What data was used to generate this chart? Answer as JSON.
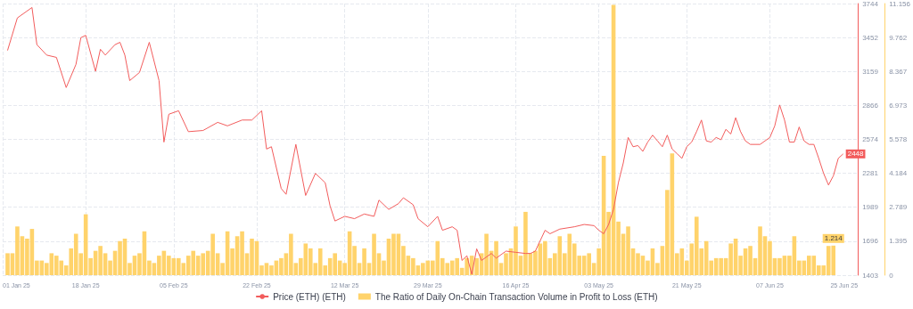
{
  "chart_data": {
    "type": "bar",
    "x": [
      "2025-01-02",
      "2025-01-03",
      "2025-01-04",
      "2025-01-05",
      "2025-01-06",
      "2025-01-07",
      "2025-01-08",
      "2025-01-09",
      "2025-01-10",
      "2025-01-11",
      "2025-01-12",
      "2025-01-13",
      "2025-01-14",
      "2025-01-15",
      "2025-01-16",
      "2025-01-17",
      "2025-01-18",
      "2025-01-19",
      "2025-01-20",
      "2025-01-21",
      "2025-01-22",
      "2025-01-23",
      "2025-01-24",
      "2025-01-25",
      "2025-01-26",
      "2025-01-27",
      "2025-01-28",
      "2025-01-29",
      "2025-01-30",
      "2025-01-31",
      "2025-02-01",
      "2025-02-02",
      "2025-02-03",
      "2025-02-04",
      "2025-02-05",
      "2025-02-06",
      "2025-02-07",
      "2025-02-08",
      "2025-02-09",
      "2025-02-10",
      "2025-02-11",
      "2025-02-12",
      "2025-02-13",
      "2025-02-14",
      "2025-02-15",
      "2025-02-16",
      "2025-02-17",
      "2025-02-18",
      "2025-02-19",
      "2025-02-20",
      "2025-02-21",
      "2025-02-22",
      "2025-02-23",
      "2025-02-24",
      "2025-02-25",
      "2025-02-26",
      "2025-02-27",
      "2025-02-28",
      "2025-03-01",
      "2025-03-02",
      "2025-03-03",
      "2025-03-04",
      "2025-03-05",
      "2025-03-06",
      "2025-03-07",
      "2025-03-08",
      "2025-03-09",
      "2025-03-10",
      "2025-03-11",
      "2025-03-12",
      "2025-03-13",
      "2025-03-14",
      "2025-03-15",
      "2025-03-16",
      "2025-03-17",
      "2025-03-18",
      "2025-03-19",
      "2025-03-20",
      "2025-03-21",
      "2025-03-22",
      "2025-03-23",
      "2025-03-24",
      "2025-03-25",
      "2025-03-26",
      "2025-03-27",
      "2025-03-28",
      "2025-03-29",
      "2025-03-30",
      "2025-03-31",
      "2025-04-01",
      "2025-04-02",
      "2025-04-03",
      "2025-04-04",
      "2025-04-05",
      "2025-04-06",
      "2025-04-07",
      "2025-04-08",
      "2025-04-09",
      "2025-04-10",
      "2025-04-11",
      "2025-04-12",
      "2025-04-13",
      "2025-04-14",
      "2025-04-15",
      "2025-04-16",
      "2025-04-17",
      "2025-04-18",
      "2025-04-19",
      "2025-04-20",
      "2025-04-21",
      "2025-04-22",
      "2025-04-23",
      "2025-04-24",
      "2025-04-25",
      "2025-04-26",
      "2025-04-27",
      "2025-04-28",
      "2025-04-29",
      "2025-04-30",
      "2025-05-01",
      "2025-05-02",
      "2025-05-03",
      "2025-05-04",
      "2025-05-05",
      "2025-05-06",
      "2025-05-07",
      "2025-05-08",
      "2025-05-09",
      "2025-05-10",
      "2025-05-11",
      "2025-05-12",
      "2025-05-13",
      "2025-05-14",
      "2025-05-15",
      "2025-05-16",
      "2025-05-17",
      "2025-05-18",
      "2025-05-19",
      "2025-05-20",
      "2025-05-21",
      "2025-05-22",
      "2025-05-23",
      "2025-05-24",
      "2025-05-25",
      "2025-05-26",
      "2025-05-27",
      "2025-05-28",
      "2025-05-29",
      "2025-05-30",
      "2025-05-31",
      "2025-06-01",
      "2025-06-02",
      "2025-06-03",
      "2025-06-04",
      "2025-06-05",
      "2025-06-06",
      "2025-06-07",
      "2025-06-08",
      "2025-06-09",
      "2025-06-10",
      "2025-06-11",
      "2025-06-12",
      "2025-06-13",
      "2025-06-14",
      "2025-06-15",
      "2025-06-16",
      "2025-06-17",
      "2025-06-18",
      "2025-06-19",
      "2025-06-20"
    ],
    "series": [
      {
        "name": "Price (ETH) (ETH)",
        "type": "line",
        "color": "#f25c5c",
        "x": [
          "2025-01-02",
          "2025-01-04",
          "2025-01-07",
          "2025-01-08",
          "2025-01-10",
          "2025-01-12",
          "2025-01-14",
          "2025-01-16",
          "2025-01-17",
          "2025-01-18",
          "2025-01-20",
          "2025-01-21",
          "2025-01-22",
          "2025-01-24",
          "2025-01-25",
          "2025-01-26",
          "2025-01-27",
          "2025-01-29",
          "2025-01-31",
          "2025-02-02",
          "2025-02-03",
          "2025-02-04",
          "2025-02-06",
          "2025-02-08",
          "2025-02-11",
          "2025-02-14",
          "2025-02-16",
          "2025-02-19",
          "2025-02-21",
          "2025-02-23",
          "2025-02-24",
          "2025-02-25",
          "2025-02-27",
          "2025-02-28",
          "2025-03-02",
          "2025-03-04",
          "2025-03-06",
          "2025-03-08",
          "2025-03-09",
          "2025-03-10",
          "2025-03-12",
          "2025-03-14",
          "2025-03-16",
          "2025-03-18",
          "2025-03-19",
          "2025-03-21",
          "2025-03-23",
          "2025-03-24",
          "2025-03-26",
          "2025-03-27",
          "2025-03-29",
          "2025-03-31",
          "2025-04-01",
          "2025-04-03",
          "2025-04-04",
          "2025-04-05",
          "2025-04-06",
          "2025-04-07",
          "2025-04-08",
          "2025-04-09",
          "2025-04-11",
          "2025-04-12",
          "2025-04-14",
          "2025-04-16",
          "2025-04-18",
          "2025-04-19",
          "2025-04-20",
          "2025-04-22",
          "2025-04-23",
          "2025-04-25",
          "2025-04-28",
          "2025-04-30",
          "2025-05-02",
          "2025-05-03",
          "2025-05-04",
          "2025-05-05",
          "2025-05-06",
          "2025-05-07",
          "2025-05-08",
          "2025-05-09",
          "2025-05-10",
          "2025-05-11",
          "2025-05-12",
          "2025-05-13",
          "2025-05-14",
          "2025-05-15",
          "2025-05-16",
          "2025-05-17",
          "2025-05-18",
          "2025-05-19",
          "2025-05-20",
          "2025-05-21",
          "2025-05-22",
          "2025-05-23",
          "2025-05-24",
          "2025-05-25",
          "2025-05-26",
          "2025-05-27",
          "2025-05-28",
          "2025-05-29",
          "2025-05-30",
          "2025-05-31",
          "2025-06-01",
          "2025-06-02",
          "2025-06-03",
          "2025-06-04",
          "2025-06-05",
          "2025-06-07",
          "2025-06-08",
          "2025-06-09",
          "2025-06-10",
          "2025-06-11",
          "2025-06-12",
          "2025-06-13",
          "2025-06-14",
          "2025-06-15",
          "2025-06-16",
          "2025-06-17",
          "2025-06-18",
          "2025-06-19",
          "2025-06-20",
          "2025-06-21",
          "2025-06-22"
        ],
        "values": [
          3340,
          3620,
          3710,
          3390,
          3300,
          3280,
          3020,
          3220,
          3450,
          3470,
          3160,
          3350,
          3300,
          3390,
          3410,
          3300,
          3080,
          3150,
          3410,
          3080,
          2550,
          2790,
          2820,
          2640,
          2650,
          2720,
          2690,
          2740,
          2740,
          2820,
          2490,
          2510,
          2150,
          2100,
          2530,
          2090,
          2280,
          2200,
          2000,
          1870,
          1910,
          1890,
          1930,
          1910,
          2050,
          1970,
          2020,
          2070,
          2010,
          1890,
          1820,
          1910,
          1790,
          1820,
          1790,
          1530,
          1570,
          1410,
          1630,
          1530,
          1590,
          1550,
          1610,
          1600,
          1590,
          1590,
          1610,
          1790,
          1760,
          1800,
          1820,
          1840,
          1830,
          1790,
          1760,
          1840,
          1970,
          2200,
          2370,
          2590,
          2510,
          2520,
          2470,
          2550,
          2610,
          2560,
          2510,
          2610,
          2490,
          2450,
          2410,
          2510,
          2550,
          2640,
          2740,
          2560,
          2550,
          2590,
          2570,
          2660,
          2620,
          2760,
          2640,
          2560,
          2530,
          2530,
          2530,
          2590,
          2690,
          2870,
          2740,
          2550,
          2550,
          2680,
          2560,
          2530,
          2530,
          2410,
          2280,
          2180,
          2260,
          2410,
          2448
        ],
        "value_labels": [
          null,
          null,
          null,
          null,
          null,
          null,
          null,
          null,
          null,
          null,
          null,
          null,
          null,
          null,
          null,
          null,
          null,
          null,
          null,
          null,
          null,
          null,
          null,
          null,
          null,
          null,
          null,
          null,
          null,
          null,
          null,
          null,
          null,
          null,
          null,
          null,
          null,
          null,
          null,
          null,
          null,
          null,
          null,
          null,
          null,
          null,
          null,
          null,
          null,
          null,
          null,
          null,
          null,
          null,
          null,
          null,
          null,
          null,
          null,
          null,
          null,
          null,
          null,
          null,
          null,
          null,
          null,
          null,
          null,
          null,
          null,
          null,
          null,
          null,
          null,
          null,
          null,
          null,
          null,
          null,
          null,
          null,
          null,
          null,
          null,
          null,
          null,
          null,
          null,
          null,
          null,
          null,
          null,
          null,
          null,
          null,
          null,
          null,
          null,
          null,
          null,
          null,
          null,
          null,
          null,
          null,
          null,
          null,
          null,
          null,
          null,
          null,
          null,
          null,
          null,
          null,
          null,
          null,
          null,
          null,
          null,
          null,
          "2448"
        ]
      },
      {
        "name": "The Ratio of Daily On-Chain Transaction Volume in Profit to Loss (ETH)",
        "axis": "y2",
        "color": "#ffd36b",
        "values": [
          0.9,
          0.9,
          2.0,
          1.6,
          1.5,
          1.9,
          0.6,
          0.6,
          0.5,
          0.9,
          0.8,
          0.6,
          0.4,
          1.1,
          1.7,
          0.9,
          2.5,
          0.7,
          1.0,
          1.2,
          0.9,
          0.6,
          1.0,
          1.4,
          1.5,
          0.5,
          0.8,
          0.9,
          1.8,
          0.6,
          0.5,
          0.8,
          1.0,
          0.8,
          0.7,
          0.7,
          0.5,
          0.8,
          1.0,
          0.8,
          0.9,
          1.0,
          1.7,
          0.9,
          0.5,
          1.8,
          1.1,
          1.6,
          1.8,
          0.9,
          1.5,
          1.4,
          0.4,
          0.5,
          0.4,
          0.6,
          0.7,
          0.9,
          1.7,
          0.5,
          0.7,
          1.3,
          1.1,
          0.5,
          1.1,
          0.4,
          0.7,
          0.9,
          0.6,
          0.5,
          1.8,
          1.2,
          0.5,
          1.1,
          0.5,
          1.7,
          0.9,
          0.6,
          1.5,
          1.7,
          1.7,
          1.2,
          0.8,
          0.7,
          0.4,
          0.5,
          0.6,
          0.6,
          1.4,
          0.7,
          0.5,
          0.6,
          0.7,
          0.3,
          0.7,
          0.8,
          0.7,
          0.9,
          1.7,
          1.0,
          1.4,
          0.5,
          0.9,
          1.1,
          2.0,
          0.8,
          2.6,
          0.9,
          1.0,
          1.3,
          1.4,
          0.7,
          0.9,
          1.6,
          0.9,
          1.7,
          1.3,
          0.8,
          0.8,
          0.9,
          0.5,
          1.1,
          4.9,
          2.6,
          11.1,
          2.2,
          1.7,
          2.0,
          1.1,
          0.9,
          0.8,
          0.6,
          1.1,
          0.5,
          1.2,
          3.5,
          5.0,
          0.9,
          1.1,
          0.6,
          1.3,
          2.4,
          1.1,
          1.4,
          0.6,
          0.7,
          0.7,
          0.7,
          1.3,
          1.5,
          0.8,
          1.1,
          1.2,
          0.7,
          2.0,
          1.6,
          1.4,
          0.7,
          0.7,
          0.8,
          0.8,
          1.6,
          0.6,
          0.6,
          0.8,
          0.8,
          0.4,
          0.4,
          1.2,
          1.214
        ],
        "value_labels": [
          null,
          null,
          null,
          null,
          null,
          null,
          null,
          null,
          null,
          null,
          null,
          null,
          null,
          null,
          null,
          null,
          null,
          null,
          null,
          null,
          null,
          null,
          null,
          null,
          null,
          null,
          null,
          null,
          null,
          null,
          null,
          null,
          null,
          null,
          null,
          null,
          null,
          null,
          null,
          null,
          null,
          null,
          null,
          null,
          null,
          null,
          null,
          null,
          null,
          null,
          null,
          null,
          null,
          null,
          null,
          null,
          null,
          null,
          null,
          null,
          null,
          null,
          null,
          null,
          null,
          null,
          null,
          null,
          null,
          null,
          null,
          null,
          null,
          null,
          null,
          null,
          null,
          null,
          null,
          null,
          null,
          null,
          null,
          null,
          null,
          null,
          null,
          null,
          null,
          null,
          null,
          null,
          null,
          null,
          null,
          null,
          null,
          null,
          null,
          null,
          null,
          null,
          null,
          null,
          null,
          null,
          null,
          null,
          null,
          null,
          null,
          null,
          null,
          null,
          null,
          null,
          null,
          null,
          null,
          null,
          null,
          null,
          null,
          null,
          null,
          null,
          null,
          null,
          null,
          null,
          null,
          null,
          null,
          null,
          null,
          null,
          null,
          null,
          null,
          null,
          null,
          null,
          null,
          null,
          null,
          null,
          null,
          null,
          null,
          null,
          null,
          null,
          null,
          null,
          null,
          null,
          null,
          null,
          null,
          null,
          null,
          null,
          null,
          null,
          null,
          null,
          null,
          null,
          null,
          "1.214"
        ]
      }
    ],
    "xlim": [
      "2025-01-01",
      "2025-06-25"
    ],
    "xticks": [
      {
        "value": "2025-01-01",
        "label": "01 Jan 25"
      },
      {
        "value": "2025-01-18",
        "label": "18 Jan 25"
      },
      {
        "value": "2025-02-05",
        "label": "05 Feb 25"
      },
      {
        "value": "2025-02-22",
        "label": "22 Feb 25"
      },
      {
        "value": "2025-03-12",
        "label": "12 Mar 25"
      },
      {
        "value": "2025-03-29",
        "label": "29 Mar 25"
      },
      {
        "value": "2025-04-16",
        "label": "16 Apr 25"
      },
      {
        "value": "2025-05-03",
        "label": "03 May 25"
      },
      {
        "value": "2025-05-21",
        "label": "21 May 25"
      },
      {
        "value": "2025-06-07",
        "label": "07 Jun 25"
      },
      {
        "value": "2025-06-25",
        "label": "25 Jun 25"
      }
    ],
    "ylim": [
      1403,
      3744
    ],
    "yticks": [
      1403,
      1696,
      1989,
      2281,
      2574,
      2866,
      3159,
      3452,
      3744
    ],
    "y2lim": [
      0,
      11.156
    ],
    "y2ticks": [
      0,
      1.395,
      2.789,
      4.184,
      5.578,
      6.973,
      8.367,
      9.762,
      11.156
    ],
    "grid": true,
    "legend": "bottom"
  }
}
